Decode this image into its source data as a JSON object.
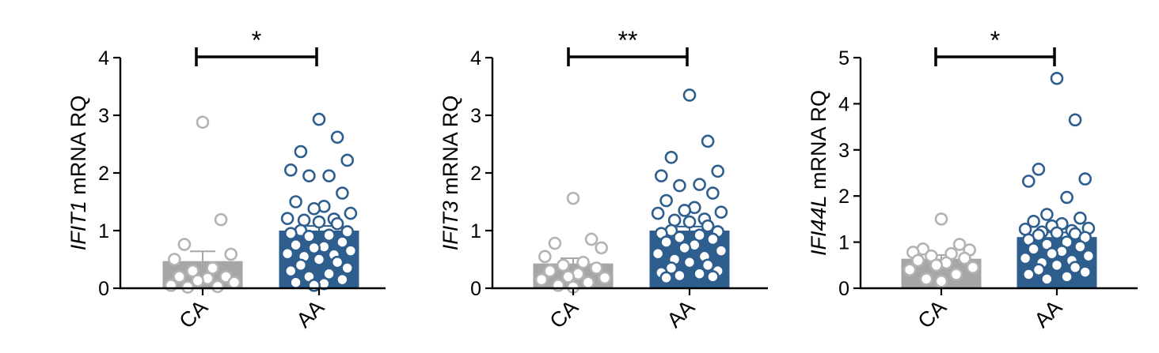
{
  "chart_data": [
    {
      "type": "bar",
      "categories": [
        "CA",
        "AA"
      ],
      "ylabel": {
        "gene": "IFIT1",
        "suffix": " mRNA RQ"
      },
      "ylim": [
        0,
        4
      ],
      "yticks": [
        "0",
        "1",
        "2",
        "3",
        "4"
      ],
      "means": [
        0.47,
        1.0
      ],
      "sem": [
        0.17,
        0.08
      ],
      "significance": "*",
      "colors": [
        "#a6a6a6",
        "#2e5e8e"
      ],
      "points": [
        [
          2.88,
          1.19,
          0.76,
          0.59,
          0.5,
          0.35,
          0.3,
          0.2,
          0.2,
          0.17,
          0.13,
          0.1,
          0.05,
          0.03,
          0.02
        ],
        [
          2.93,
          2.62,
          2.37,
          2.22,
          2.05,
          1.95,
          1.95,
          1.65,
          1.5,
          1.42,
          1.38,
          1.3,
          1.21,
          1.2,
          1.18,
          1.15,
          1.12,
          1.0,
          0.98,
          0.95,
          0.92,
          0.9,
          0.8,
          0.75,
          0.72,
          0.7,
          0.65,
          0.6,
          0.58,
          0.55,
          0.5,
          0.45,
          0.4,
          0.35,
          0.3,
          0.25,
          0.2,
          0.15,
          0.1,
          0.08,
          0.05
        ]
      ]
    },
    {
      "type": "bar",
      "categories": [
        "CA",
        "AA"
      ],
      "ylabel": {
        "gene": "IFIT3",
        "suffix": " mRNA RQ"
      },
      "ylim": [
        0,
        4
      ],
      "yticks": [
        "0",
        "1",
        "2",
        "3",
        "4"
      ],
      "means": [
        0.43,
        1.0
      ],
      "sem": [
        0.09,
        0.07
      ],
      "significance": "**",
      "colors": [
        "#a6a6a6",
        "#2e5e8e"
      ],
      "points": [
        [
          1.56,
          0.85,
          0.78,
          0.7,
          0.55,
          0.45,
          0.4,
          0.35,
          0.3,
          0.25,
          0.2,
          0.18,
          0.15,
          0.1,
          0.05,
          0.02
        ],
        [
          3.35,
          2.55,
          2.27,
          2.03,
          1.95,
          1.8,
          1.78,
          1.65,
          1.52,
          1.4,
          1.35,
          1.32,
          1.3,
          1.2,
          1.18,
          1.15,
          1.08,
          1.0,
          0.98,
          0.95,
          0.92,
          0.88,
          0.85,
          0.8,
          0.75,
          0.7,
          0.65,
          0.6,
          0.55,
          0.5,
          0.45,
          0.4,
          0.35,
          0.3,
          0.27,
          0.25,
          0.22,
          0.2,
          0.18
        ]
      ]
    },
    {
      "type": "bar",
      "categories": [
        "CA",
        "AA"
      ],
      "ylabel": {
        "gene": "IFI44L",
        "suffix": " mRNA RQ"
      },
      "ylim": [
        0,
        5
      ],
      "yticks": [
        "0",
        "1",
        "2",
        "3",
        "4",
        "5"
      ],
      "means": [
        0.64,
        1.11
      ],
      "sem": [
        0.08,
        0.1
      ],
      "significance": "*",
      "colors": [
        "#a6a6a6",
        "#2e5e8e"
      ],
      "points": [
        [
          1.5,
          0.95,
          0.85,
          0.83,
          0.78,
          0.75,
          0.7,
          0.65,
          0.6,
          0.55,
          0.5,
          0.45,
          0.4,
          0.3,
          0.2,
          0.15
        ],
        [
          4.55,
          3.65,
          2.58,
          2.37,
          2.32,
          1.97,
          1.6,
          1.52,
          1.45,
          1.4,
          1.35,
          1.3,
          1.28,
          1.25,
          1.22,
          1.2,
          1.18,
          1.15,
          1.1,
          1.05,
          1.0,
          0.95,
          0.9,
          0.85,
          0.8,
          0.75,
          0.7,
          0.65,
          0.6,
          0.55,
          0.5,
          0.45,
          0.4,
          0.35,
          0.3,
          0.25,
          0.2
        ]
      ]
    }
  ]
}
